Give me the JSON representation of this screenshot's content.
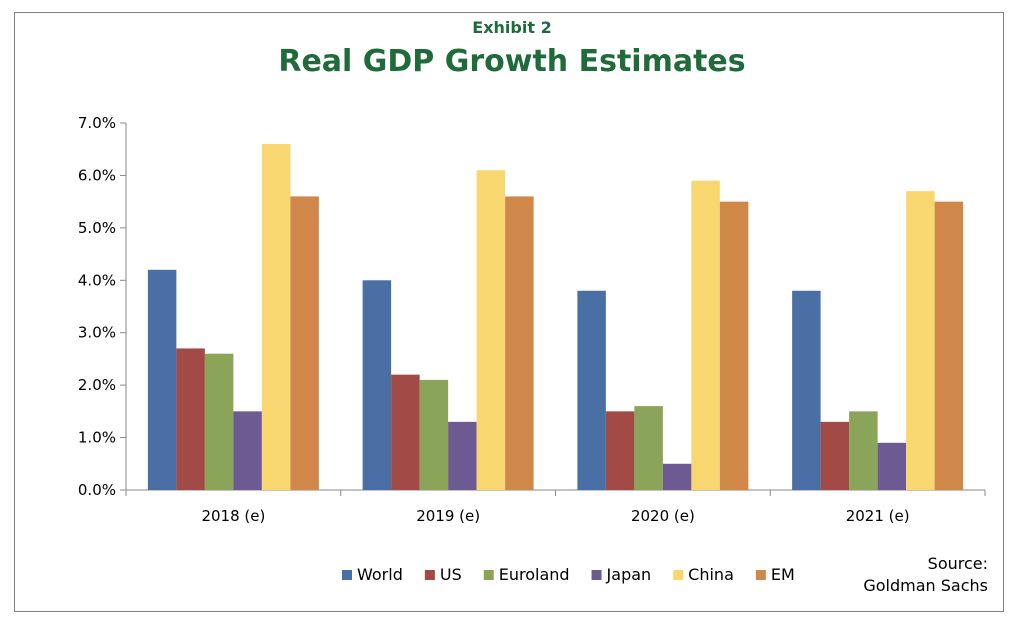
{
  "exhibit_label": "Exhibit 2",
  "source": {
    "line1": "Source:",
    "line2": "Goldman Sachs"
  },
  "chart_data": {
    "type": "bar",
    "title": "Real GDP Growth Estimates",
    "categories": [
      "2018 (e)",
      "2019 (e)",
      "2020 (e)",
      "2021 (e)"
    ],
    "y_ticks": [
      "0.0%",
      "1.0%",
      "2.0%",
      "3.0%",
      "4.0%",
      "5.0%",
      "6.0%",
      "7.0%"
    ],
    "ylim": [
      0,
      7
    ],
    "unit": "%",
    "grid": false,
    "legend_position": "bottom",
    "series": [
      {
        "name": "World",
        "color": "#4a6fa5",
        "values": [
          4.2,
          4.0,
          3.8,
          3.8
        ]
      },
      {
        "name": "US",
        "color": "#a24a46",
        "values": [
          2.7,
          2.2,
          1.5,
          1.3
        ]
      },
      {
        "name": "Euroland",
        "color": "#8aa55a",
        "values": [
          2.6,
          2.1,
          1.6,
          1.5
        ]
      },
      {
        "name": "Japan",
        "color": "#6d5a92",
        "values": [
          1.5,
          1.3,
          0.5,
          0.9
        ]
      },
      {
        "name": "China",
        "color": "#f9d770",
        "values": [
          6.6,
          6.1,
          5.9,
          5.7
        ]
      },
      {
        "name": "EM",
        "color": "#d0884a",
        "values": [
          5.6,
          5.6,
          5.5,
          5.5
        ]
      }
    ]
  }
}
